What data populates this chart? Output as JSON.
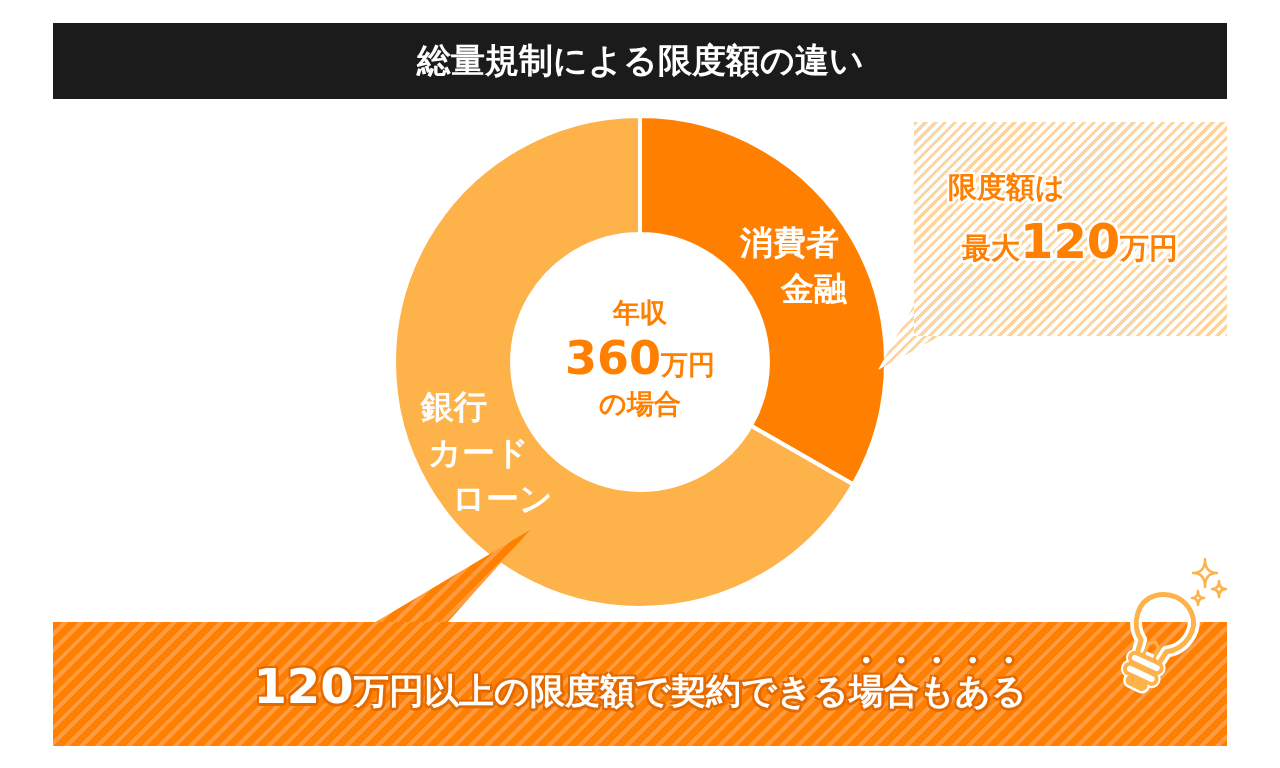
{
  "chart_data": {
    "type": "donut",
    "title": "総量規制による限度額の違い",
    "categories": [
      "消費者金融",
      "銀行カードローン"
    ],
    "values": [
      33.3,
      66.7
    ],
    "colors": [
      "#ff7f00",
      "#fdb24a"
    ],
    "annotations": [
      "年収360万円の場合",
      "限度額は最大120万円",
      "120万円以上の限度額で契約できる場合もある"
    ]
  }
}
